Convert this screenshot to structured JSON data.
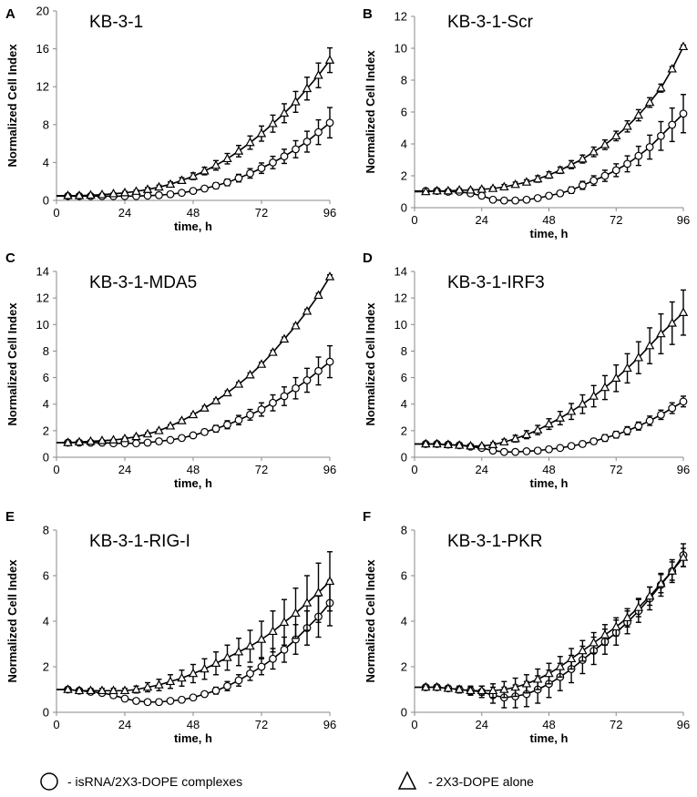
{
  "figure": {
    "legend": [
      {
        "marker": "circle",
        "label": "-  isRNA/2X3-DOPE complexes"
      },
      {
        "marker": "triangle",
        "label": "-  2X3-DOPE alone"
      }
    ]
  },
  "chart_data": [
    {
      "type": "line",
      "letter": "A",
      "title": "KB-3-1",
      "xlabel": "time, h",
      "ylabel": "Normalized Cell Index",
      "xlim": [
        0,
        96
      ],
      "xticks": [
        0,
        24,
        48,
        72,
        96
      ],
      "ylim": [
        0,
        20
      ],
      "yticks": [
        0,
        4,
        8,
        12,
        16,
        20
      ],
      "x": [
        4,
        8,
        12,
        16,
        20,
        24,
        28,
        32,
        36,
        40,
        44,
        48,
        52,
        56,
        60,
        64,
        68,
        72,
        76,
        80,
        84,
        88,
        92,
        96
      ],
      "series": [
        {
          "name": "isRNA/2X3-DOPE complexes",
          "marker": "circle",
          "values": [
            0.45,
            0.45,
            0.45,
            0.45,
            0.45,
            0.45,
            0.45,
            0.5,
            0.55,
            0.65,
            0.8,
            1.0,
            1.25,
            1.55,
            1.9,
            2.35,
            2.85,
            3.4,
            4.0,
            4.65,
            5.4,
            6.2,
            7.2,
            8.2
          ],
          "errors": [
            0.1,
            0.1,
            0.1,
            0.1,
            0.1,
            0.1,
            0.15,
            0.15,
            0.15,
            0.2,
            0.2,
            0.2,
            0.25,
            0.3,
            0.35,
            0.4,
            0.5,
            0.55,
            0.65,
            0.75,
            0.9,
            1.1,
            1.3,
            1.6
          ]
        },
        {
          "name": "2X3-DOPE alone",
          "marker": "triangle",
          "values": [
            0.5,
            0.5,
            0.55,
            0.6,
            0.7,
            0.8,
            0.95,
            1.15,
            1.4,
            1.7,
            2.1,
            2.55,
            3.1,
            3.7,
            4.4,
            5.2,
            6.1,
            7.05,
            8.1,
            9.2,
            10.4,
            11.8,
            13.2,
            14.8
          ],
          "errors": [
            0.1,
            0.1,
            0.1,
            0.1,
            0.1,
            0.15,
            0.15,
            0.2,
            0.2,
            0.25,
            0.3,
            0.35,
            0.4,
            0.5,
            0.55,
            0.6,
            0.7,
            0.8,
            0.9,
            1.0,
            1.1,
            1.2,
            1.3,
            1.3
          ]
        }
      ]
    },
    {
      "type": "line",
      "letter": "B",
      "title": "KB-3-1-Scr",
      "xlabel": "time, h",
      "ylabel": "Normalized Cell Index",
      "xlim": [
        0,
        96
      ],
      "xticks": [
        0,
        24,
        48,
        72,
        96
      ],
      "ylim": [
        0,
        12
      ],
      "yticks": [
        0,
        2,
        4,
        6,
        8,
        10,
        12
      ],
      "x": [
        4,
        8,
        12,
        16,
        20,
        24,
        28,
        32,
        36,
        40,
        44,
        48,
        52,
        56,
        60,
        64,
        68,
        72,
        76,
        80,
        84,
        88,
        92,
        96
      ],
      "series": [
        {
          "name": "isRNA/2X3-DOPE complexes",
          "marker": "circle",
          "values": [
            1.05,
            1.05,
            1.0,
            1.0,
            0.9,
            0.75,
            0.5,
            0.45,
            0.45,
            0.5,
            0.6,
            0.75,
            0.9,
            1.1,
            1.4,
            1.7,
            2.0,
            2.35,
            2.75,
            3.25,
            3.8,
            4.5,
            5.2,
            5.9
          ],
          "errors": [
            0.1,
            0.1,
            0.1,
            0.1,
            0.1,
            0.1,
            0.1,
            0.1,
            0.1,
            0.1,
            0.1,
            0.1,
            0.15,
            0.2,
            0.25,
            0.3,
            0.35,
            0.4,
            0.5,
            0.6,
            0.75,
            0.9,
            1.05,
            1.2
          ]
        },
        {
          "name": "2X3-DOPE alone",
          "marker": "triangle",
          "values": [
            1.0,
            1.05,
            1.05,
            1.1,
            1.1,
            1.15,
            1.2,
            1.3,
            1.45,
            1.6,
            1.8,
            2.05,
            2.35,
            2.7,
            3.05,
            3.5,
            3.95,
            4.5,
            5.1,
            5.8,
            6.6,
            7.5,
            8.7,
            10.1
          ],
          "errors": [
            0.05,
            0.05,
            0.05,
            0.1,
            0.1,
            0.1,
            0.1,
            0.15,
            0.15,
            0.15,
            0.2,
            0.2,
            0.2,
            0.25,
            0.25,
            0.3,
            0.3,
            0.3,
            0.35,
            0.35,
            0.3,
            0.25,
            0.15,
            0.1
          ]
        }
      ]
    },
    {
      "type": "line",
      "letter": "C",
      "title": "KB-3-1-MDA5",
      "xlabel": "time, h",
      "ylabel": "Normalized Cell Index",
      "xlim": [
        0,
        96
      ],
      "xticks": [
        0,
        24,
        48,
        72,
        96
      ],
      "ylim": [
        0,
        14
      ],
      "yticks": [
        0,
        2,
        4,
        6,
        8,
        10,
        12,
        14
      ],
      "x": [
        4,
        8,
        12,
        16,
        20,
        24,
        28,
        32,
        36,
        40,
        44,
        48,
        52,
        56,
        60,
        64,
        68,
        72,
        76,
        80,
        84,
        88,
        92,
        96
      ],
      "series": [
        {
          "name": "isRNA/2X3-DOPE complexes",
          "marker": "circle",
          "values": [
            1.1,
            1.1,
            1.1,
            1.1,
            1.05,
            1.05,
            1.05,
            1.1,
            1.2,
            1.3,
            1.45,
            1.65,
            1.9,
            2.15,
            2.45,
            2.8,
            3.2,
            3.6,
            4.1,
            4.6,
            5.2,
            5.8,
            6.5,
            7.2
          ],
          "errors": [
            0.1,
            0.1,
            0.1,
            0.1,
            0.1,
            0.1,
            0.1,
            0.1,
            0.1,
            0.1,
            0.15,
            0.15,
            0.2,
            0.25,
            0.3,
            0.35,
            0.4,
            0.5,
            0.6,
            0.7,
            0.8,
            0.9,
            1.05,
            1.2
          ]
        },
        {
          "name": "2X3-DOPE alone",
          "marker": "triangle",
          "values": [
            1.1,
            1.15,
            1.2,
            1.25,
            1.3,
            1.4,
            1.55,
            1.75,
            2.0,
            2.35,
            2.75,
            3.2,
            3.7,
            4.25,
            4.85,
            5.5,
            6.2,
            7.0,
            7.9,
            8.9,
            9.9,
            11.0,
            12.2,
            13.6
          ],
          "errors": [
            0.05,
            0.05,
            0.05,
            0.05,
            0.05,
            0.1,
            0.1,
            0.1,
            0.1,
            0.1,
            0.1,
            0.1,
            0.15,
            0.15,
            0.15,
            0.15,
            0.15,
            0.15,
            0.15,
            0.15,
            0.15,
            0.15,
            0.15,
            0.15
          ]
        }
      ]
    },
    {
      "type": "line",
      "letter": "D",
      "title": "KB-3-1-IRF3",
      "xlabel": "time, h",
      "ylabel": "Normalized Cell Index",
      "xlim": [
        0,
        96
      ],
      "xticks": [
        0,
        24,
        48,
        72,
        96
      ],
      "ylim": [
        0,
        14
      ],
      "yticks": [
        0,
        2,
        4,
        6,
        8,
        10,
        12,
        14
      ],
      "x": [
        4,
        8,
        12,
        16,
        20,
        24,
        28,
        32,
        36,
        40,
        44,
        48,
        52,
        56,
        60,
        64,
        68,
        72,
        76,
        80,
        84,
        88,
        92,
        96
      ],
      "series": [
        {
          "name": "isRNA/2X3-DOPE complexes",
          "marker": "circle",
          "values": [
            1.0,
            1.0,
            0.95,
            0.9,
            0.8,
            0.7,
            0.5,
            0.4,
            0.4,
            0.45,
            0.5,
            0.6,
            0.7,
            0.85,
            1.0,
            1.2,
            1.45,
            1.7,
            2.0,
            2.35,
            2.75,
            3.2,
            3.7,
            4.2
          ],
          "errors": [
            0.1,
            0.1,
            0.1,
            0.1,
            0.1,
            0.1,
            0.1,
            0.1,
            0.1,
            0.1,
            0.1,
            0.15,
            0.15,
            0.15,
            0.2,
            0.2,
            0.25,
            0.25,
            0.3,
            0.3,
            0.35,
            0.35,
            0.4,
            0.4
          ]
        },
        {
          "name": "2X3-DOPE alone",
          "marker": "triangle",
          "values": [
            1.0,
            1.0,
            0.95,
            0.9,
            0.85,
            0.85,
            0.95,
            1.15,
            1.4,
            1.7,
            2.05,
            2.5,
            2.95,
            3.45,
            4.0,
            4.6,
            5.25,
            5.95,
            6.7,
            7.5,
            8.4,
            9.3,
            10.1,
            10.9
          ],
          "errors": [
            0.1,
            0.1,
            0.1,
            0.1,
            0.1,
            0.1,
            0.15,
            0.2,
            0.25,
            0.3,
            0.35,
            0.4,
            0.5,
            0.6,
            0.7,
            0.8,
            0.9,
            1.0,
            1.1,
            1.2,
            1.35,
            1.5,
            1.6,
            1.7
          ]
        }
      ]
    },
    {
      "type": "line",
      "letter": "E",
      "title": "KB-3-1-RIG-I",
      "xlabel": "time, h",
      "ylabel": "Normalized Cell Index",
      "xlim": [
        0,
        96
      ],
      "xticks": [
        0,
        24,
        48,
        72,
        96
      ],
      "ylim": [
        0,
        8
      ],
      "yticks": [
        0,
        2,
        4,
        6,
        8
      ],
      "x": [
        4,
        8,
        12,
        16,
        20,
        24,
        28,
        32,
        36,
        40,
        44,
        48,
        52,
        56,
        60,
        64,
        68,
        72,
        76,
        80,
        84,
        88,
        92,
        96
      ],
      "series": [
        {
          "name": "isRNA/2X3-DOPE complexes",
          "marker": "circle",
          "values": [
            1.0,
            0.95,
            0.9,
            0.85,
            0.75,
            0.6,
            0.5,
            0.45,
            0.45,
            0.5,
            0.55,
            0.65,
            0.8,
            0.95,
            1.15,
            1.4,
            1.7,
            2.0,
            2.35,
            2.75,
            3.2,
            3.7,
            4.2,
            4.8
          ],
          "errors": [
            0.05,
            0.05,
            0.05,
            0.05,
            0.05,
            0.05,
            0.05,
            0.05,
            0.05,
            0.05,
            0.05,
            0.1,
            0.1,
            0.15,
            0.2,
            0.25,
            0.3,
            0.35,
            0.45,
            0.55,
            0.65,
            0.75,
            0.9,
            1.0
          ]
        },
        {
          "name": "2X3-DOPE alone",
          "marker": "triangle",
          "values": [
            1.0,
            0.95,
            0.95,
            0.95,
            0.95,
            0.95,
            1.0,
            1.1,
            1.2,
            1.35,
            1.5,
            1.7,
            1.9,
            2.15,
            2.4,
            2.65,
            2.9,
            3.2,
            3.55,
            3.95,
            4.35,
            4.8,
            5.25,
            5.75
          ],
          "errors": [
            0.05,
            0.05,
            0.1,
            0.1,
            0.1,
            0.1,
            0.15,
            0.2,
            0.25,
            0.3,
            0.35,
            0.4,
            0.45,
            0.5,
            0.55,
            0.6,
            0.7,
            0.8,
            0.9,
            1.0,
            1.1,
            1.2,
            1.3,
            1.3
          ]
        }
      ]
    },
    {
      "type": "line",
      "letter": "F",
      "title": "KB-3-1-PKR",
      "xlabel": "time, h",
      "ylabel": "Normalized Cell Index",
      "xlim": [
        0,
        96
      ],
      "xticks": [
        0,
        24,
        48,
        72,
        96
      ],
      "ylim": [
        0,
        8
      ],
      "yticks": [
        0,
        2,
        4,
        6,
        8
      ],
      "x": [
        4,
        8,
        12,
        16,
        20,
        24,
        28,
        32,
        36,
        40,
        44,
        48,
        52,
        56,
        60,
        64,
        68,
        72,
        76,
        80,
        84,
        88,
        92,
        96
      ],
      "series": [
        {
          "name": "isRNA/2X3-DOPE complexes",
          "marker": "circle",
          "values": [
            1.1,
            1.1,
            1.05,
            1.0,
            0.95,
            0.9,
            0.75,
            0.65,
            0.7,
            0.8,
            1.0,
            1.25,
            1.55,
            1.9,
            2.3,
            2.7,
            3.1,
            3.5,
            3.95,
            4.45,
            5.0,
            5.6,
            6.2,
            6.9
          ],
          "errors": [
            0.1,
            0.1,
            0.1,
            0.15,
            0.2,
            0.25,
            0.35,
            0.45,
            0.5,
            0.55,
            0.6,
            0.6,
            0.6,
            0.6,
            0.6,
            0.6,
            0.55,
            0.55,
            0.5,
            0.5,
            0.5,
            0.5,
            0.5,
            0.5
          ]
        },
        {
          "name": "2X3-DOPE alone",
          "marker": "triangle",
          "values": [
            1.1,
            1.1,
            1.05,
            1.0,
            0.95,
            0.95,
            0.95,
            1.0,
            1.1,
            1.25,
            1.45,
            1.7,
            2.0,
            2.35,
            2.7,
            3.05,
            3.4,
            3.75,
            4.15,
            4.6,
            5.1,
            5.65,
            6.2,
            6.8
          ],
          "errors": [
            0.05,
            0.05,
            0.1,
            0.1,
            0.15,
            0.2,
            0.3,
            0.35,
            0.4,
            0.4,
            0.45,
            0.45,
            0.45,
            0.45,
            0.45,
            0.45,
            0.45,
            0.4,
            0.4,
            0.4,
            0.4,
            0.4,
            0.4,
            0.4
          ]
        }
      ]
    }
  ]
}
